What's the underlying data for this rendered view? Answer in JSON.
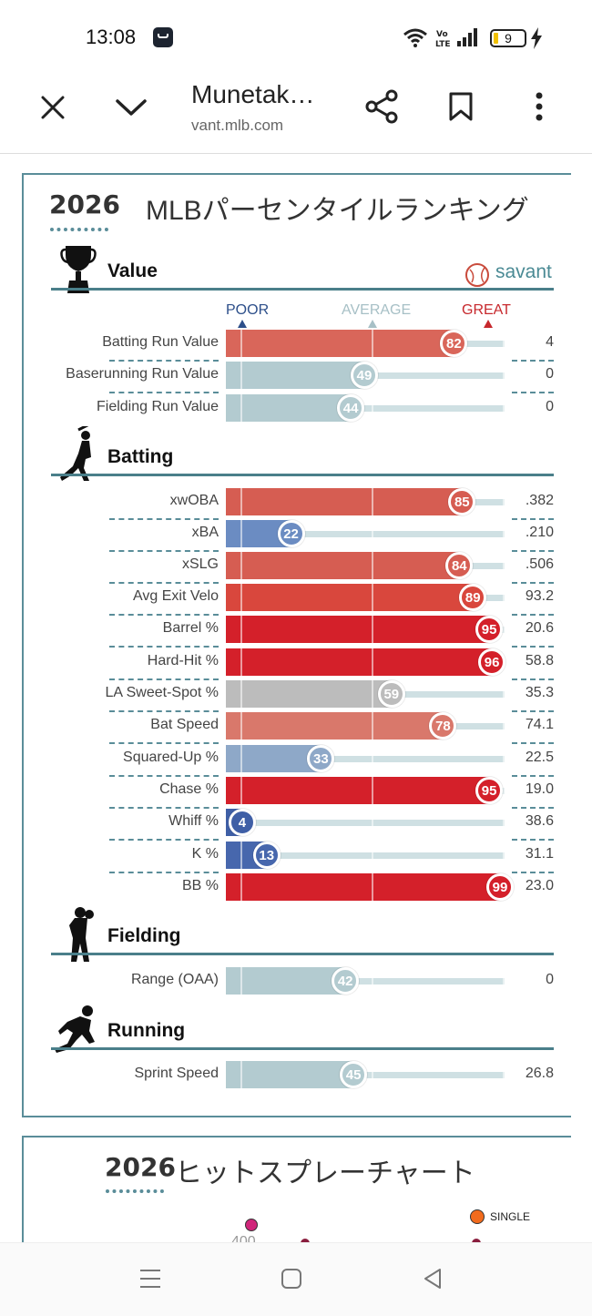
{
  "status_bar": {
    "time": "13:08",
    "battery": "9"
  },
  "browser": {
    "title": "Munetak…",
    "domain": "vant.mlb.com"
  },
  "percentile": {
    "year": "2026",
    "title": "MLBパーセンタイルランキング",
    "brand": "savant",
    "scale": {
      "poor": "POOR",
      "average": "AVERAGE",
      "great": "GREAT"
    },
    "categories": [
      {
        "key": "value",
        "title": "Value",
        "icon": "trophy-icon",
        "rows": [
          {
            "label": "Batting Run Value",
            "pct": 82,
            "value": "4",
            "color": "#d9665a"
          },
          {
            "label": "Baserunning Run Value",
            "pct": 49,
            "value": "0",
            "color": "#b3cbd0"
          },
          {
            "label": "Fielding Run Value",
            "pct": 44,
            "value": "0",
            "color": "#b3cbd0"
          }
        ]
      },
      {
        "key": "batting",
        "title": "Batting",
        "icon": "batter-icon",
        "rows": [
          {
            "label": "xwOBA",
            "pct": 85,
            "value": ".382",
            "color": "#d65d52"
          },
          {
            "label": "xBA",
            "pct": 22,
            "value": ".210",
            "color": "#6b8cc2"
          },
          {
            "label": "xSLG",
            "pct": 84,
            "value": ".506",
            "color": "#d65d52"
          },
          {
            "label": "Avg Exit Velo",
            "pct": 89,
            "value": "93.2",
            "color": "#d9473d"
          },
          {
            "label": "Barrel %",
            "pct": 95,
            "value": "20.6",
            "color": "#d4202a"
          },
          {
            "label": "Hard-Hit %",
            "pct": 96,
            "value": "58.8",
            "color": "#d4202a"
          },
          {
            "label": "LA Sweet-Spot %",
            "pct": 59,
            "value": "35.3",
            "color": "#bcbcbc"
          },
          {
            "label": "Bat Speed",
            "pct": 78,
            "value": "74.1",
            "color": "#d9786b"
          },
          {
            "label": "Squared-Up %",
            "pct": 33,
            "value": "22.5",
            "color": "#8ea8c8"
          },
          {
            "label": "Chase %",
            "pct": 95,
            "value": "19.0",
            "color": "#d4202a"
          },
          {
            "label": "Whiff %",
            "pct": 4,
            "value": "38.6",
            "color": "#3f5fa6"
          },
          {
            "label": "K %",
            "pct": 13,
            "value": "31.1",
            "color": "#4767ad"
          },
          {
            "label": "BB %",
            "pct": 99,
            "value": "23.0",
            "color": "#d4202a"
          }
        ]
      },
      {
        "key": "fielding",
        "title": "Fielding",
        "icon": "fielder-icon",
        "rows": [
          {
            "label": "Range (OAA)",
            "pct": 42,
            "value": "0",
            "color": "#b3cbd0"
          }
        ]
      },
      {
        "key": "running",
        "title": "Running",
        "icon": "runner-icon",
        "rows": [
          {
            "label": "Sprint Speed",
            "pct": 45,
            "value": "26.8",
            "color": "#b3cbd0"
          }
        ]
      }
    ]
  },
  "spray": {
    "year": "2026",
    "title": "ヒットスプレーチャート",
    "legend_single": "SINGLE",
    "axis_400": "400",
    "colors": {
      "single": "#f26b1d",
      "dot": "#d0267a"
    }
  }
}
